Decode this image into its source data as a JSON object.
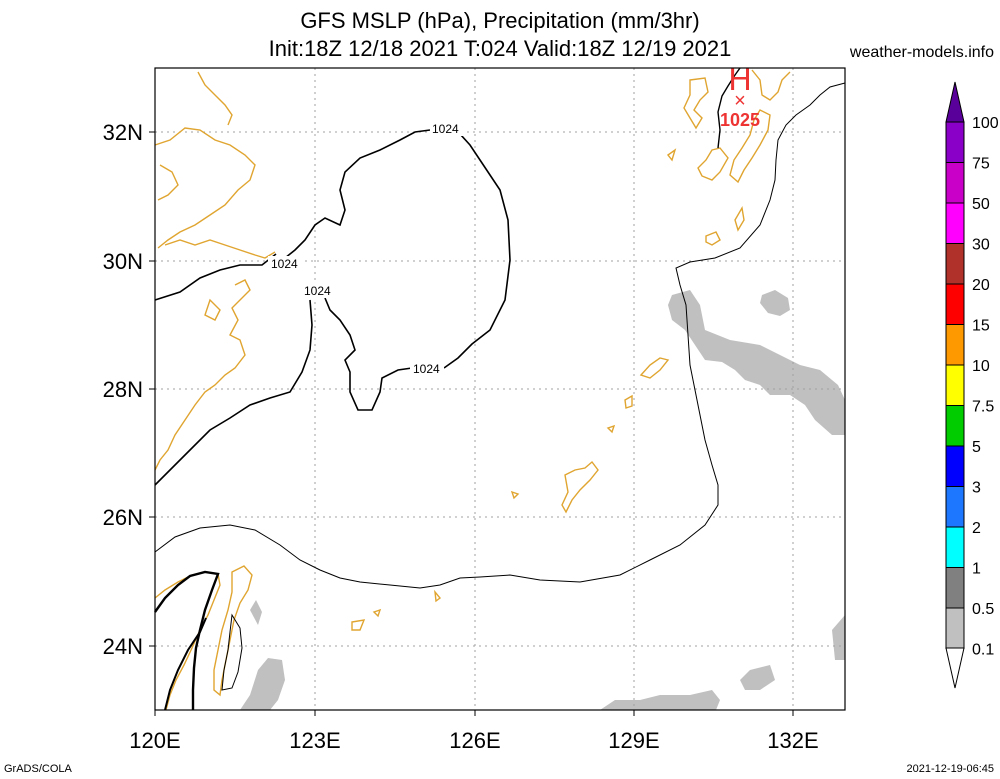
{
  "header": {
    "title_line1": "GFS MSLP (hPa), Precipitation (mm/3hr)",
    "title_line2": "Init:18Z 12/18 2021 T:024 Valid:18Z 12/19 2021",
    "site": "weather-models.info"
  },
  "footer": {
    "left": "GrADS/COLA",
    "right": "2021-12-19-06:45"
  },
  "map": {
    "lon_labels": [
      "120E",
      "123E",
      "126E",
      "129E",
      "132E"
    ],
    "lat_labels": [
      "32N",
      "30N",
      "28N",
      "26N",
      "24N"
    ],
    "high_marker": {
      "letter": "H",
      "symbol": "×",
      "value": "1025"
    },
    "isobar_labels": [
      "1024",
      "1024",
      "1024",
      "1024"
    ]
  },
  "colorbar": {
    "labels": [
      "100",
      "75",
      "50",
      "30",
      "20",
      "15",
      "10",
      "7.5",
      "5",
      "3",
      "2",
      "1",
      "0.5",
      "0.1"
    ],
    "colors": [
      "#8a00c8",
      "#c800c8",
      "#ff00ff",
      "#b0302a",
      "#ff0000",
      "#ff9900",
      "#ffff00",
      "#00cc00",
      "#0000ff",
      "#1e78ff",
      "#00ffff",
      "#808080",
      "#c0c0c0"
    ],
    "top_color": "#5a009a"
  },
  "colors": {
    "coast": "#e0a530",
    "precip": "#c0c0c0",
    "high": "#ee3333",
    "grid": "#a0a0a0"
  }
}
